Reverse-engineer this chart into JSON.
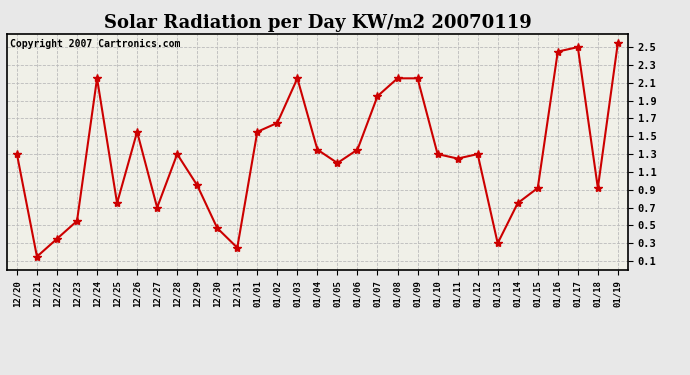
{
  "title": "Solar Radiation per Day KW/m2 20070119",
  "copyright": "Copyright 2007 Cartronics.com",
  "dates": [
    "12/20",
    "12/21",
    "12/22",
    "12/23",
    "12/24",
    "12/25",
    "12/26",
    "12/27",
    "12/28",
    "12/29",
    "12/30",
    "12/31",
    "01/01",
    "01/02",
    "01/03",
    "01/04",
    "01/05",
    "01/06",
    "01/07",
    "01/08",
    "01/09",
    "01/10",
    "01/11",
    "01/12",
    "01/13",
    "01/14",
    "01/15",
    "01/16",
    "01/17",
    "01/18",
    "01/19"
  ],
  "values": [
    1.3,
    0.15,
    0.35,
    0.55,
    2.15,
    0.75,
    1.55,
    0.7,
    1.3,
    0.95,
    0.47,
    0.25,
    1.55,
    1.65,
    2.15,
    1.35,
    1.2,
    1.35,
    1.95,
    2.15,
    2.15,
    1.3,
    1.25,
    1.3,
    0.3,
    0.75,
    0.92,
    2.45,
    2.5,
    0.92,
    2.55
  ],
  "ylim": [
    0.0,
    2.65
  ],
  "yticks": [
    0.1,
    0.3,
    0.5,
    0.7,
    0.9,
    1.1,
    1.3,
    1.5,
    1.7,
    1.9,
    2.1,
    2.3,
    2.5
  ],
  "line_color": "#cc0000",
  "marker_color": "#cc0000",
  "bg_color": "#e8e8e8",
  "plot_bg_color": "#f0f0e8",
  "grid_color": "#bbbbbb",
  "title_fontsize": 13,
  "copyright_fontsize": 7
}
